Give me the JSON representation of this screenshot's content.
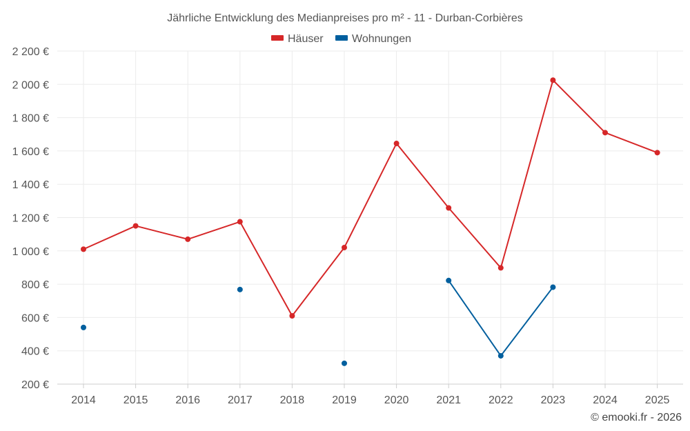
{
  "chart_data": {
    "type": "line",
    "title": "Jährliche Entwicklung des Medianpreises pro m² - 11 - Durban-Corbières",
    "x": [
      "2014",
      "2015",
      "2016",
      "2017",
      "2018",
      "2019",
      "2020",
      "2021",
      "2022",
      "2023",
      "2024",
      "2025"
    ],
    "ylim": [
      200,
      2200
    ],
    "yticks": [
      200,
      400,
      600,
      800,
      1000,
      1200,
      1400,
      1600,
      1800,
      2000,
      2200
    ],
    "ytick_labels": [
      "200 €",
      "400 €",
      "600 €",
      "800 €",
      "1 000 €",
      "1 200 €",
      "1 400 €",
      "1 600 €",
      "1 800 €",
      "2 000 €",
      "2 200 €"
    ],
    "grid": true,
    "legend": "top-center",
    "series": [
      {
        "name": "Häuser",
        "color": "#d62728",
        "values": [
          1010,
          1150,
          1070,
          1175,
          610,
          1020,
          1645,
          1258,
          898,
          2025,
          1710,
          1590
        ]
      },
      {
        "name": "Wohnungen",
        "color": "#005f9e",
        "values": [
          540,
          null,
          null,
          768,
          null,
          325,
          null,
          822,
          370,
          782,
          null,
          null
        ]
      }
    ],
    "credit": "© emooki.fr - 2026"
  }
}
